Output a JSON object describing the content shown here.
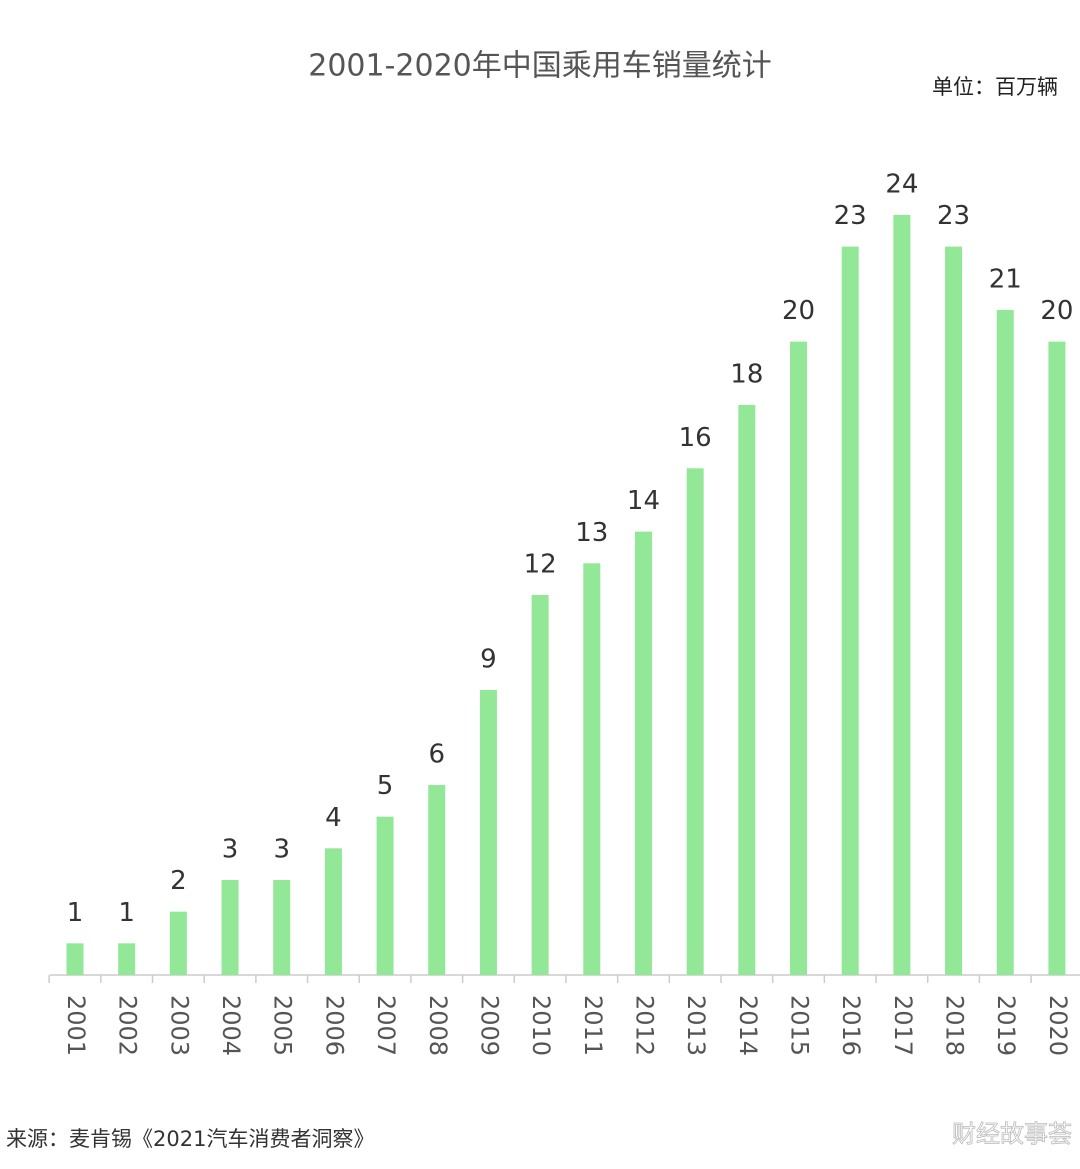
{
  "chart_data": {
    "type": "bar",
    "title": "2001-2020年中国乘用车销量统计",
    "unit_label": "单位：百万辆",
    "source": "来源：麦肯锡《2021汽车消费者洞察》",
    "watermark": "财经故事荟",
    "categories": [
      "2001",
      "2002",
      "2003",
      "2004",
      "2005",
      "2006",
      "2007",
      "2008",
      "2009",
      "2010",
      "2011",
      "2012",
      "2013",
      "2014",
      "2015",
      "2016",
      "2017",
      "2018",
      "2019",
      "2020"
    ],
    "values": [
      1,
      1,
      2,
      3,
      3,
      4,
      5,
      6,
      9,
      12,
      13,
      14,
      16,
      18,
      20,
      23,
      24,
      23,
      21,
      20
    ],
    "color": "#92e897"
  }
}
